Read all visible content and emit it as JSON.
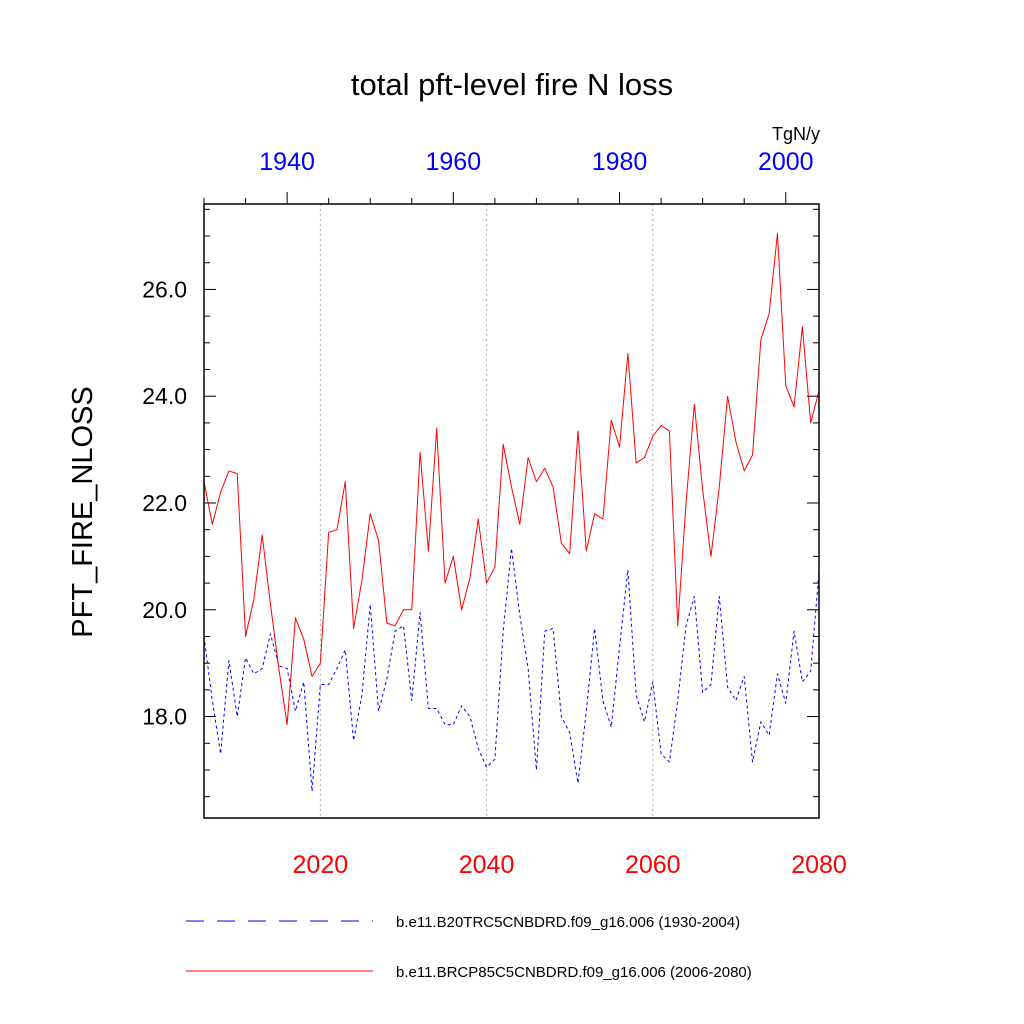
{
  "chart_data": {
    "type": "line",
    "title": "total pft-level fire N loss",
    "ylabel": "PFT_FIRE_NLOSS",
    "units": "TgN/y",
    "ylim": [
      16.1,
      27.6
    ],
    "yticks": [
      18.0,
      20.0,
      22.0,
      24.0,
      26.0
    ],
    "yticks_text": [
      "18.0",
      "20.0",
      "22.0",
      "24.0",
      "26.0"
    ],
    "grid": "vertical dotted lines at bottom-axis ticks",
    "top_axis": {
      "label_color": "#0000ff",
      "range": [
        1930,
        2004
      ],
      "ticks": [
        1940,
        1960,
        1980,
        2000
      ],
      "ticks_text": [
        "1940",
        "1960",
        "1980",
        "2000"
      ]
    },
    "bottom_axis": {
      "label_color": "#ff0000",
      "range": [
        2006,
        2080
      ],
      "ticks": [
        2020,
        2040,
        2060,
        2080
      ],
      "ticks_text": [
        "2020",
        "2040",
        "2060",
        "2080"
      ]
    },
    "series": [
      {
        "name": "b.e11.B20TRC5CNBDRD.f09_g16.006 (1930-2004)",
        "color": "#0000ff",
        "dash": "dashed",
        "x_start": 1930,
        "values": [
          19.5,
          18.3,
          17.3,
          19.05,
          18.0,
          19.1,
          18.8,
          18.9,
          19.55,
          18.95,
          18.9,
          18.1,
          18.65,
          16.6,
          18.6,
          18.6,
          18.9,
          19.25,
          17.55,
          18.4,
          20.1,
          18.1,
          18.7,
          19.6,
          19.7,
          18.3,
          19.95,
          18.15,
          18.15,
          17.85,
          17.85,
          18.2,
          18.0,
          17.4,
          17.05,
          17.2,
          19.6,
          21.15,
          19.9,
          18.9,
          17.0,
          19.6,
          19.65,
          18.0,
          17.7,
          16.75,
          18.1,
          19.65,
          18.3,
          17.8,
          19.3,
          20.75,
          18.4,
          17.9,
          18.65,
          17.3,
          17.15,
          18.3,
          19.7,
          20.25,
          18.45,
          18.6,
          20.25,
          18.55,
          18.3,
          18.75,
          17.15,
          17.9,
          17.65,
          18.8,
          18.25,
          19.6,
          18.65,
          18.85,
          20.7
        ]
      },
      {
        "name": "b.e11.BRCP85C5CNBDRD.f09_g16.006 (2006-2080)",
        "color": "#ff0000",
        "dash": "solid",
        "x_start": 2006,
        "values": [
          22.4,
          21.6,
          22.2,
          22.6,
          22.55,
          19.5,
          20.2,
          21.4,
          20.1,
          18.9,
          17.85,
          19.85,
          19.45,
          18.75,
          19.0,
          21.45,
          21.5,
          22.4,
          19.65,
          20.55,
          21.8,
          21.3,
          19.75,
          19.7,
          20.0,
          20.0,
          22.95,
          21.1,
          23.4,
          20.5,
          21.0,
          20.0,
          20.6,
          21.7,
          20.5,
          20.8,
          23.1,
          22.3,
          21.6,
          22.85,
          22.4,
          22.65,
          22.3,
          21.25,
          21.05,
          23.35,
          21.1,
          21.8,
          21.7,
          23.55,
          23.05,
          24.8,
          22.75,
          22.85,
          23.25,
          23.45,
          23.35,
          19.7,
          22.0,
          23.85,
          22.25,
          21.0,
          22.3,
          24.0,
          23.15,
          22.6,
          22.9,
          25.05,
          25.55,
          27.05,
          24.2,
          23.8,
          25.3,
          23.5,
          24.1
        ]
      }
    ]
  },
  "legend": {
    "entries": [
      "b.e11.B20TRC5CNBDRD.f09_g16.006 (1930-2004)",
      "b.e11.BRCP85C5CNBDRD.f09_g16.006 (2006-2080)"
    ]
  }
}
